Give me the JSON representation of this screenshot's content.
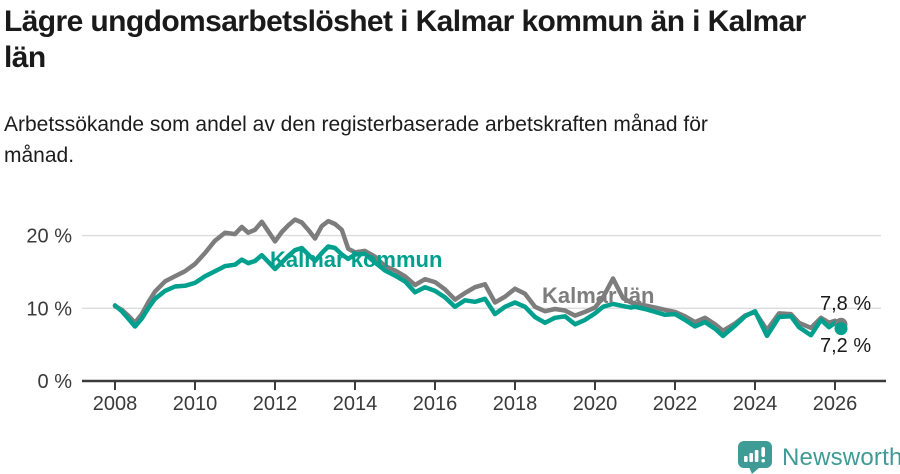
{
  "header": {
    "title_lines": [
      "Lägre ungdomsarbetslöshet i Kalmar kommun än i Kalmar",
      "län"
    ],
    "subtitle_lines": [
      "Arbetssökande som andel av den registerbaserade arbetskraften månad för",
      "månad."
    ]
  },
  "chart_data": {
    "type": "line",
    "title": "Lägre ungdomsarbetslöshet i Kalmar kommun än i Kalmar län",
    "subtitle": "Arbetssökande som andel av den registerbaserade arbetskraften månad för månad.",
    "unit": "%",
    "grid": "horizontal",
    "legend_position": "inline-labels",
    "ylim": [
      0,
      24
    ],
    "xlim": [
      2007.2,
      2026.4
    ],
    "yticks": [
      {
        "value": 0,
        "label": "0 %"
      },
      {
        "value": 10,
        "label": "10 %"
      },
      {
        "value": 20,
        "label": "20 %"
      }
    ],
    "xticks": [
      {
        "value": 2008,
        "label": "2008"
      },
      {
        "value": 2010,
        "label": "2010"
      },
      {
        "value": 2012,
        "label": "2012"
      },
      {
        "value": 2014,
        "label": "2014"
      },
      {
        "value": 2016,
        "label": "2016"
      },
      {
        "value": 2018,
        "label": "2018"
      },
      {
        "value": 2020,
        "label": "2020"
      },
      {
        "value": 2022,
        "label": "2022"
      },
      {
        "value": 2024,
        "label": "2024"
      },
      {
        "value": 2026,
        "label": "2026"
      }
    ],
    "x": [
      2008.0,
      2008.17,
      2008.33,
      2008.5,
      2008.67,
      2008.83,
      2009.0,
      2009.25,
      2009.5,
      2009.75,
      2010.0,
      2010.25,
      2010.5,
      2010.75,
      2011.0,
      2011.17,
      2011.33,
      2011.5,
      2011.67,
      2011.83,
      2012.0,
      2012.17,
      2012.33,
      2012.5,
      2012.67,
      2012.83,
      2013.0,
      2013.17,
      2013.33,
      2013.5,
      2013.67,
      2013.83,
      2014.0,
      2014.25,
      2014.5,
      2014.75,
      2015.0,
      2015.25,
      2015.5,
      2015.75,
      2016.0,
      2016.25,
      2016.5,
      2016.75,
      2017.0,
      2017.25,
      2017.5,
      2017.75,
      2018.0,
      2018.25,
      2018.5,
      2018.75,
      2019.0,
      2019.25,
      2019.5,
      2019.75,
      2020.0,
      2020.2,
      2020.45,
      2020.7,
      2020.9,
      2021.0,
      2021.25,
      2021.5,
      2021.75,
      2022.0,
      2022.25,
      2022.5,
      2022.75,
      2023.0,
      2023.2,
      2023.5,
      2023.75,
      2024.0,
      2024.3,
      2024.6,
      2024.9,
      2025.1,
      2025.4,
      2025.65,
      2025.85,
      2026.0,
      2026.15
    ],
    "series": [
      {
        "name": "Kalmar län",
        "color": "#7d7d7d",
        "end_label": "7,8 %",
        "last_value": 7.8,
        "values": [
          10.3,
          9.8,
          9.0,
          8.0,
          9.2,
          10.8,
          12.3,
          13.7,
          14.4,
          15.1,
          16.1,
          17.6,
          19.3,
          20.4,
          20.2,
          21.2,
          20.4,
          20.8,
          21.9,
          20.6,
          19.2,
          20.5,
          21.4,
          22.2,
          21.8,
          20.8,
          19.6,
          21.3,
          22.0,
          21.6,
          20.8,
          18.2,
          17.7,
          17.9,
          17.1,
          15.8,
          15.2,
          14.4,
          13.2,
          14.0,
          13.6,
          12.6,
          11.2,
          12.1,
          12.9,
          13.3,
          10.8,
          11.6,
          12.7,
          12.0,
          10.2,
          9.6,
          9.9,
          9.7,
          9.0,
          9.5,
          10.1,
          11.5,
          14.1,
          11.4,
          10.8,
          10.6,
          10.4,
          10.1,
          9.8,
          9.5,
          8.9,
          8.1,
          8.7,
          7.8,
          6.9,
          7.9,
          9.0,
          9.5,
          7.0,
          9.3,
          9.2,
          8.0,
          7.3,
          8.7,
          8.0,
          8.3,
          7.8
        ]
      },
      {
        "name": "Kalmar kommun",
        "color": "#00a08f",
        "end_label": "7,2 %",
        "last_value": 7.2,
        "values": [
          10.4,
          9.6,
          8.6,
          7.5,
          8.6,
          10.0,
          11.3,
          12.4,
          13.0,
          13.1,
          13.5,
          14.4,
          15.1,
          15.8,
          16.0,
          16.7,
          16.2,
          16.5,
          17.3,
          16.4,
          15.4,
          16.3,
          17.2,
          18.0,
          18.3,
          17.4,
          16.5,
          17.6,
          18.5,
          18.3,
          17.4,
          16.8,
          17.4,
          17.5,
          16.3,
          15.2,
          14.5,
          13.7,
          12.2,
          12.9,
          12.4,
          11.5,
          10.2,
          11.1,
          10.9,
          11.3,
          9.2,
          10.2,
          10.8,
          10.2,
          8.8,
          8.0,
          8.7,
          8.9,
          7.8,
          8.4,
          9.3,
          10.2,
          10.6,
          10.3,
          10.1,
          10.2,
          9.9,
          9.5,
          9.1,
          9.2,
          8.4,
          7.5,
          8.1,
          7.2,
          6.2,
          7.6,
          8.9,
          9.6,
          6.2,
          8.8,
          8.9,
          7.4,
          6.3,
          8.4,
          7.4,
          8.0,
          7.2
        ]
      }
    ],
    "colors": {
      "kommun": "#00a08f",
      "lan": "#7d7d7d",
      "axis": "#3a3a3a",
      "grid": "#dcdcdc",
      "end_label_text": "#1a1a1a"
    }
  },
  "footer": {
    "brand": "Newsworthy",
    "brand_color": "#3f9b95"
  }
}
